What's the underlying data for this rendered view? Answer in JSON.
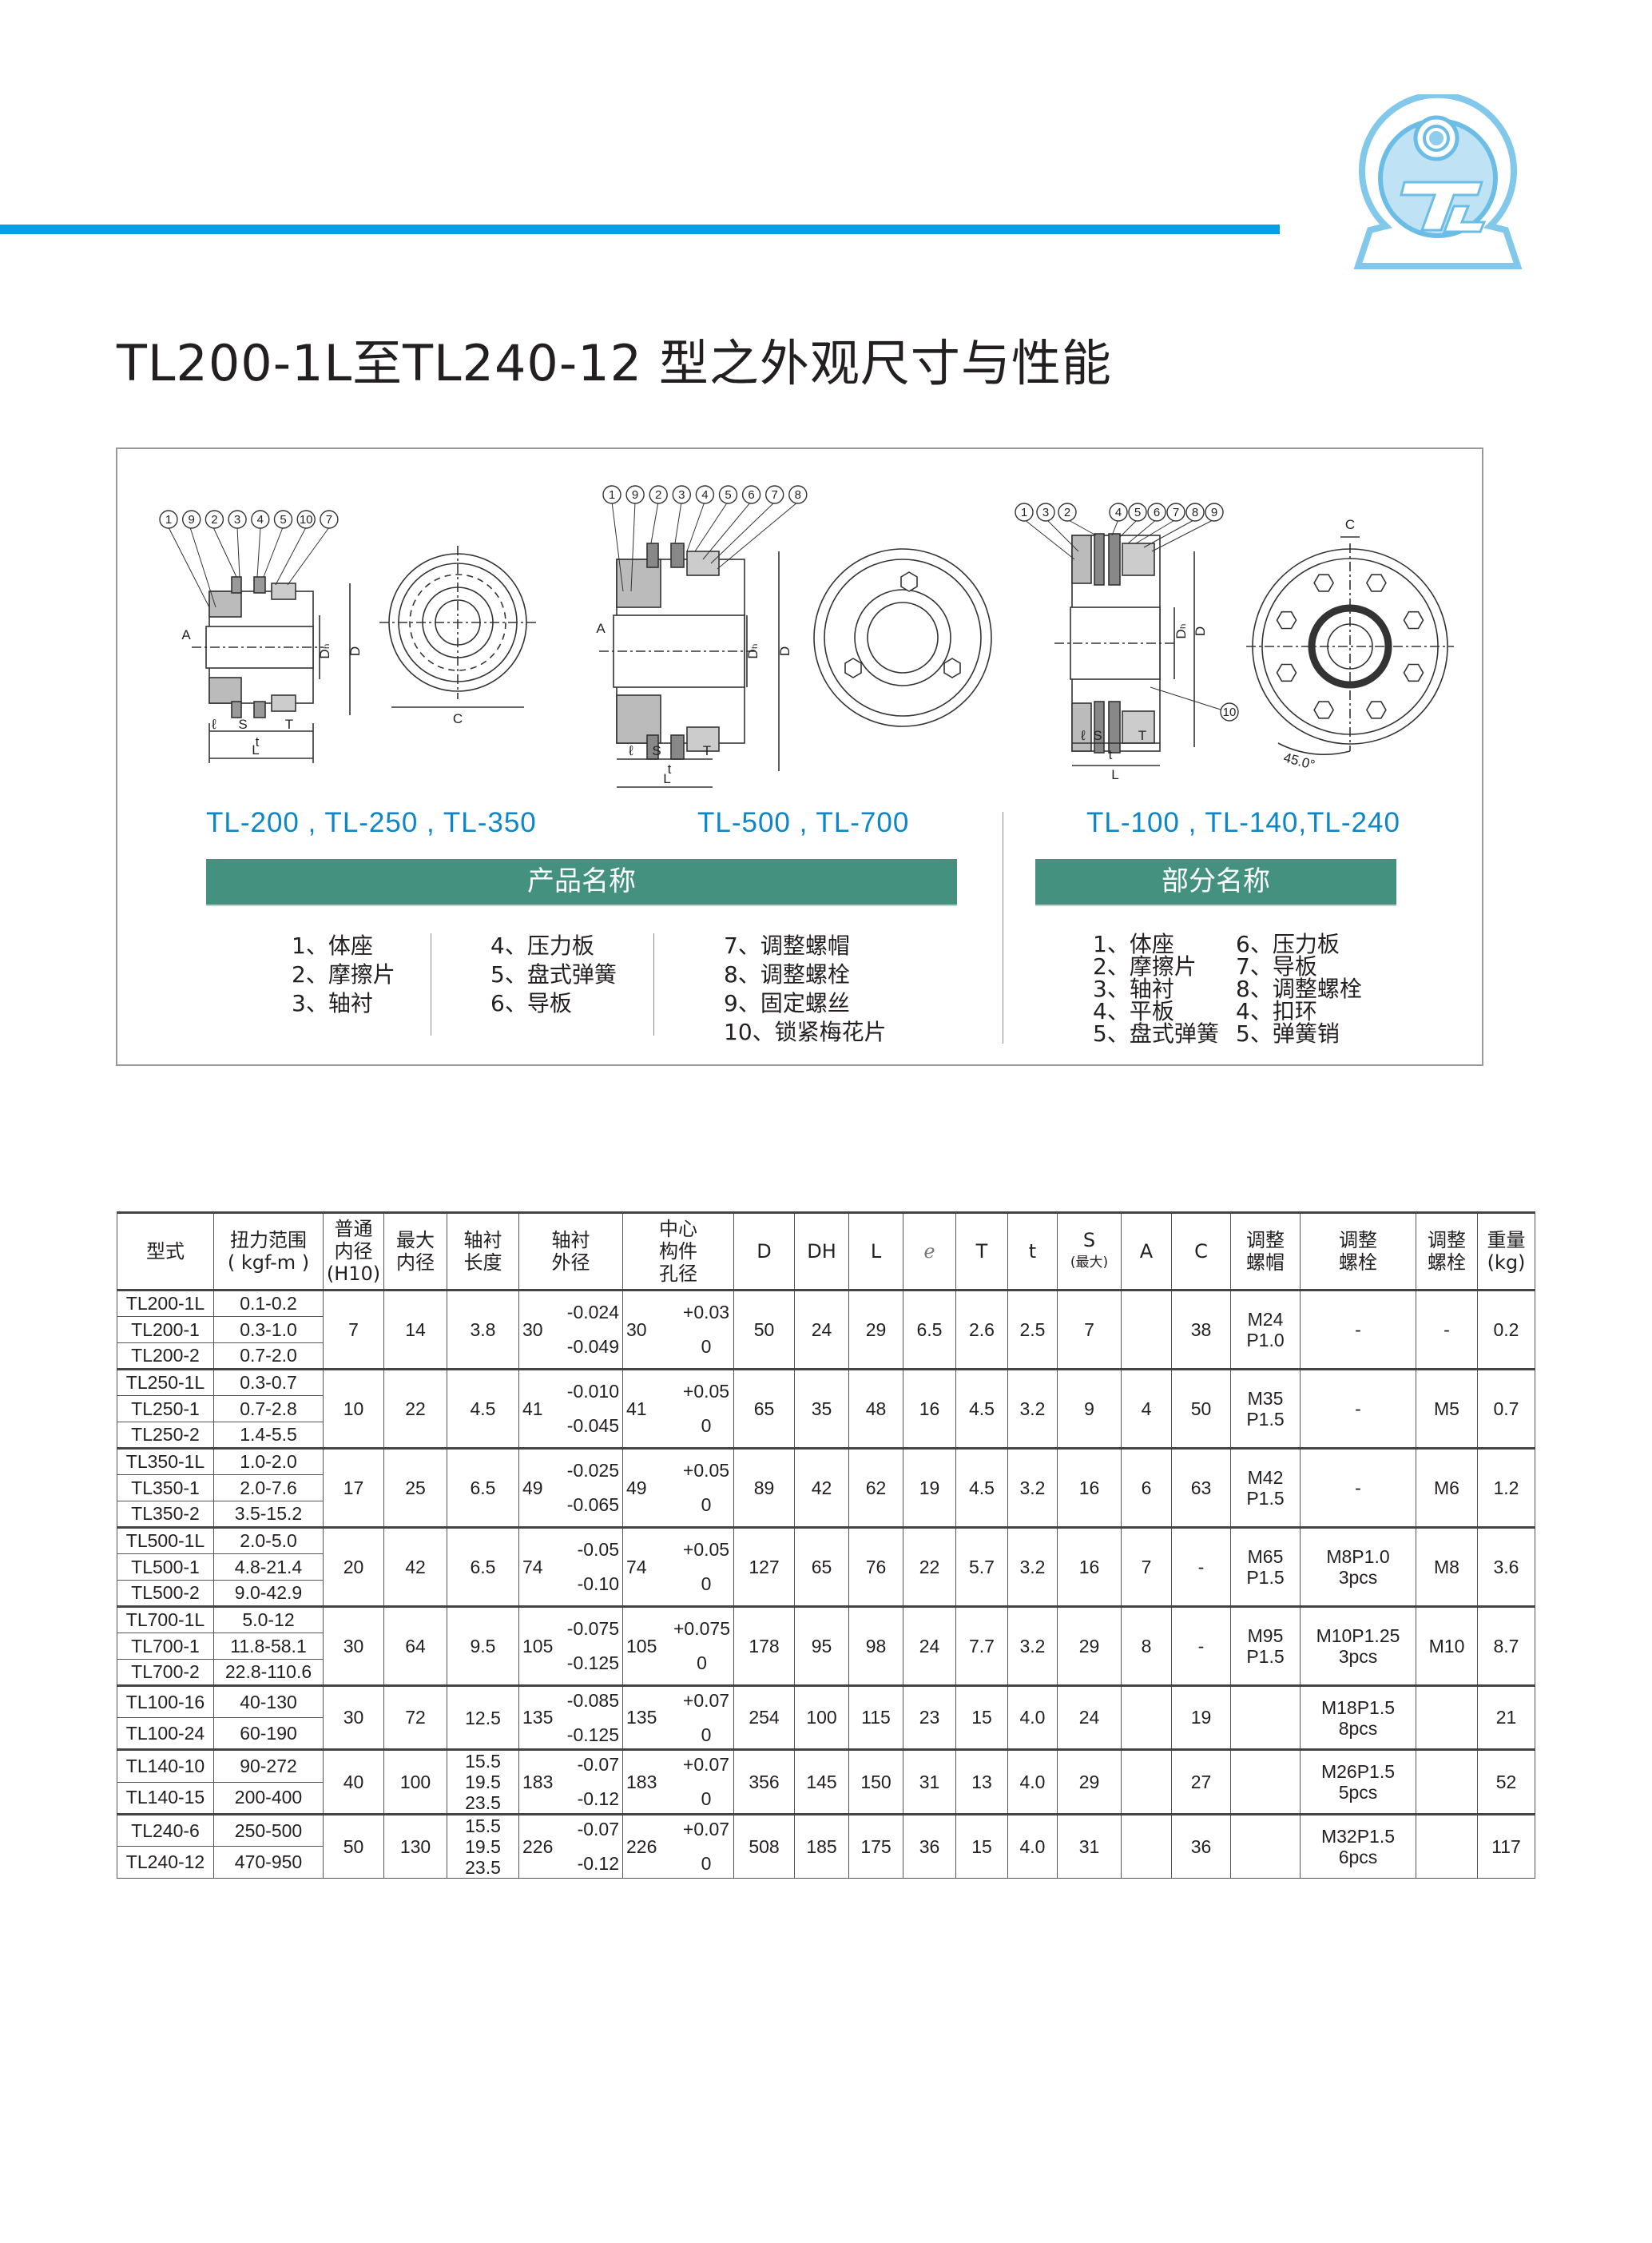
{
  "header": {
    "title": "TL200-1L至TL240-12 型之外观尺寸与性能",
    "accent_color": "#00a0e4",
    "logo": {
      "text": "TL",
      "icon": "tl-motor-logo"
    }
  },
  "diagrams": {
    "group1": {
      "models": "TL-200 , TL-250 , TL-350",
      "balloons": [
        "1",
        "9",
        "2",
        "3",
        "4",
        "5",
        "10",
        "7"
      ],
      "dims": {
        "A": "A",
        "D": "D",
        "DH": "Dₕ",
        "C": "C",
        "L": "L",
        "l": "ℓ",
        "S": "S",
        "t": "t",
        "T": "T"
      }
    },
    "group2": {
      "models": "TL-500 , TL-700",
      "balloons": [
        "1",
        "9",
        "2",
        "3",
        "4",
        "5",
        "6",
        "7",
        "8"
      ],
      "dims": {
        "A": "A",
        "D": "D",
        "DH": "Dₕ",
        "L": "L",
        "l": "ℓ",
        "S": "S",
        "t": "t",
        "T": "T"
      }
    },
    "group3": {
      "models": "TL-100 , TL-140,TL-240",
      "balloons_left": [
        "1",
        "3",
        "2"
      ],
      "balloons_right": [
        "4",
        "5",
        "6",
        "7",
        "8",
        "9"
      ],
      "balloon_extra": "10",
      "dims": {
        "D": "D",
        "DH": "Dₕ",
        "C": "C",
        "L": "L",
        "l": "ℓ",
        "S": "S",
        "t": "t",
        "T": "T",
        "angle": "45.0°"
      }
    }
  },
  "product_names": {
    "heading": "产品名称",
    "columns": [
      [
        "1、体座",
        "2、摩擦片",
        "3、轴衬"
      ],
      [
        "4、压力板",
        "5、盘式弹簧",
        "6、导板"
      ],
      [
        "7、调整螺帽",
        "8、调整螺栓",
        "9、固定螺丝",
        "10、锁紧梅花片"
      ]
    ]
  },
  "part_names": {
    "heading": "部分名称",
    "columns": [
      [
        "1、体座",
        "2、摩擦片",
        "3、轴衬",
        "4、平板",
        "5、盘式弹簧"
      ],
      [
        "6、压力板",
        "7、导板",
        "8、调整螺栓",
        "4、扣环",
        "5、弹簧销"
      ]
    ]
  },
  "table": {
    "headers": [
      [
        "型式"
      ],
      [
        "扭力范围",
        "( kgf-m )"
      ],
      [
        "普通",
        "内径",
        "(H10)"
      ],
      [
        "最大",
        "内径"
      ],
      [
        "轴衬",
        "长度"
      ],
      [
        "轴衬",
        "外径"
      ],
      [
        "中心",
        "构件",
        "孔径"
      ],
      [
        "D"
      ],
      [
        "DH"
      ],
      [
        "L"
      ],
      [
        "ℯ"
      ],
      [
        "T"
      ],
      [
        "t"
      ],
      [
        "S",
        "(最大)"
      ],
      [
        "A"
      ],
      [
        "C"
      ],
      [
        "调整",
        "螺帽"
      ],
      [
        "调整",
        "螺栓"
      ],
      [
        "调整",
        "螺栓"
      ],
      [
        "重量",
        "(kg)"
      ]
    ],
    "groups": [
      {
        "rows": [
          [
            "TL200-1L",
            "0.1-0.2"
          ],
          [
            "TL200-1",
            "0.3-1.0"
          ],
          [
            "TL200-2",
            "0.7-2.0"
          ]
        ],
        "bore": "7",
        "max_bore": "14",
        "bush_len": [
          "3.8"
        ],
        "bush_od": {
          "base": "30",
          "upper": "-0.024",
          "lower": "-0.049"
        },
        "center_bore": {
          "base": "30",
          "upper": "+0.03",
          "lower": "0"
        },
        "D": "50",
        "DH": "24",
        "L": "29",
        "e": "6.5",
        "T": "2.6",
        "t": "2.5",
        "S": "7",
        "A": "",
        "C": "38",
        "nut": [
          "M24",
          "P1.0"
        ],
        "bolt": [
          "-"
        ],
        "bolt2": "-",
        "weight": "0.2"
      },
      {
        "rows": [
          [
            "TL250-1L",
            "0.3-0.7"
          ],
          [
            "TL250-1",
            "0.7-2.8"
          ],
          [
            "TL250-2",
            "1.4-5.5"
          ]
        ],
        "bore": "10",
        "max_bore": "22",
        "bush_len": [
          "4.5"
        ],
        "bush_od": {
          "base": "41",
          "upper": "-0.010",
          "lower": "-0.045"
        },
        "center_bore": {
          "base": "41",
          "upper": "+0.05",
          "lower": "0"
        },
        "D": "65",
        "DH": "35",
        "L": "48",
        "e": "16",
        "T": "4.5",
        "t": "3.2",
        "S": "9",
        "A": "4",
        "C": "50",
        "nut": [
          "M35",
          "P1.5"
        ],
        "bolt": [
          "-"
        ],
        "bolt2": "M5",
        "weight": "0.7"
      },
      {
        "rows": [
          [
            "TL350-1L",
            "1.0-2.0"
          ],
          [
            "TL350-1",
            "2.0-7.6"
          ],
          [
            "TL350-2",
            "3.5-15.2"
          ]
        ],
        "bore": "17",
        "max_bore": "25",
        "bush_len": [
          "6.5"
        ],
        "bush_od": {
          "base": "49",
          "upper": "-0.025",
          "lower": "-0.065"
        },
        "center_bore": {
          "base": "49",
          "upper": "+0.05",
          "lower": "0"
        },
        "D": "89",
        "DH": "42",
        "L": "62",
        "e": "19",
        "T": "4.5",
        "t": "3.2",
        "S": "16",
        "A": "6",
        "C": "63",
        "nut": [
          "M42",
          "P1.5"
        ],
        "bolt": [
          "-"
        ],
        "bolt2": "M6",
        "weight": "1.2"
      },
      {
        "rows": [
          [
            "TL500-1L",
            "2.0-5.0"
          ],
          [
            "TL500-1",
            "4.8-21.4"
          ],
          [
            "TL500-2",
            "9.0-42.9"
          ]
        ],
        "bore": "20",
        "max_bore": "42",
        "bush_len": [
          "6.5"
        ],
        "bush_od": {
          "base": "74",
          "upper": "-0.05",
          "lower": "-0.10"
        },
        "center_bore": {
          "base": "74",
          "upper": "+0.05",
          "lower": "0"
        },
        "D": "127",
        "DH": "65",
        "L": "76",
        "e": "22",
        "T": "5.7",
        "t": "3.2",
        "S": "16",
        "A": "7",
        "C": "-",
        "nut": [
          "M65",
          "P1.5"
        ],
        "bolt": [
          "M8P1.0",
          "3pcs"
        ],
        "bolt2": "M8",
        "weight": "3.6"
      },
      {
        "rows": [
          [
            "TL700-1L",
            "5.0-12"
          ],
          [
            "TL700-1",
            "11.8-58.1"
          ],
          [
            "TL700-2",
            "22.8-110.6"
          ]
        ],
        "bore": "30",
        "max_bore": "64",
        "bush_len": [
          "9.5"
        ],
        "bush_od": {
          "base": "105",
          "upper": "-0.075",
          "lower": "-0.125"
        },
        "center_bore": {
          "base": "105",
          "upper": "+0.075",
          "lower": "0"
        },
        "D": "178",
        "DH": "95",
        "L": "98",
        "e": "24",
        "T": "7.7",
        "t": "3.2",
        "S": "29",
        "A": "8",
        "C": "-",
        "nut": [
          "M95",
          "P1.5"
        ],
        "bolt": [
          "M10P1.25",
          "3pcs"
        ],
        "bolt2": "M10",
        "weight": "8.7"
      },
      {
        "rows": [
          [
            "TL100-16",
            "40-130"
          ],
          [
            "TL100-24",
            "60-190"
          ]
        ],
        "bore": "30",
        "max_bore": "72",
        "bush_len": [
          "12.5"
        ],
        "bush_od": {
          "base": "135",
          "upper": "-0.085",
          "lower": "-0.125"
        },
        "center_bore": {
          "base": "135",
          "upper": "+0.07",
          "lower": "0"
        },
        "D": "254",
        "DH": "100",
        "L": "115",
        "e": "23",
        "T": "15",
        "t": "4.0",
        "S": "24",
        "A": "",
        "C": "19",
        "nut": [],
        "bolt": [
          "M18P1.5",
          "8pcs"
        ],
        "bolt2": "",
        "weight": "21"
      },
      {
        "rows": [
          [
            "TL140-10",
            "90-272"
          ],
          [
            "TL140-15",
            "200-400"
          ]
        ],
        "bore": "40",
        "max_bore": "100",
        "bush_len": [
          "15.5",
          "19.5",
          "23.5"
        ],
        "bush_od": {
          "base": "183",
          "upper": "-0.07",
          "lower": "-0.12"
        },
        "center_bore": {
          "base": "183",
          "upper": "+0.07",
          "lower": "0"
        },
        "D": "356",
        "DH": "145",
        "L": "150",
        "e": "31",
        "T": "13",
        "t": "4.0",
        "S": "29",
        "A": "",
        "C": "27",
        "nut": [],
        "bolt": [
          "M26P1.5",
          "5pcs"
        ],
        "bolt2": "",
        "weight": "52"
      },
      {
        "rows": [
          [
            "TL240-6",
            "250-500"
          ],
          [
            "TL240-12",
            "470-950"
          ]
        ],
        "bore": "50",
        "max_bore": "130",
        "bush_len": [
          "15.5",
          "19.5",
          "23.5"
        ],
        "bush_od": {
          "base": "226",
          "upper": "-0.07",
          "lower": "-0.12"
        },
        "center_bore": {
          "base": "226",
          "upper": "+0.07",
          "lower": "0"
        },
        "D": "508",
        "DH": "185",
        "L": "175",
        "e": "36",
        "T": "15",
        "t": "4.0",
        "S": "31",
        "A": "",
        "C": "36",
        "nut": [],
        "bolt": [
          "M32P1.5",
          "6pcs"
        ],
        "bolt2": "",
        "weight": "117"
      }
    ]
  }
}
